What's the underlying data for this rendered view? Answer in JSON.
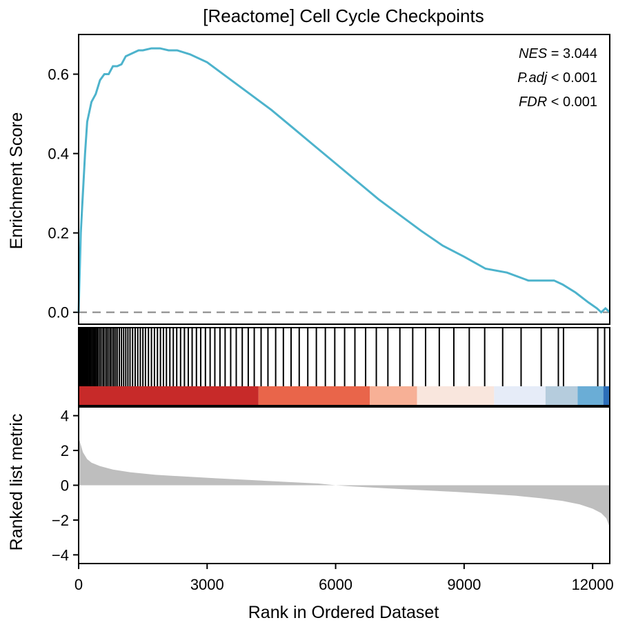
{
  "chart_data": {
    "type": "line",
    "title": "[Reactome] Cell Cycle Checkpoints",
    "annotations": [
      {
        "key": "NES",
        "op": " = ",
        "value": "3.044"
      },
      {
        "key": "P.adj",
        "op": " < ",
        "value": "0.001"
      },
      {
        "key": "FDR",
        "op": " < ",
        "value": "0.001"
      }
    ],
    "xlabel": "Rank in Ordered Dataset",
    "xlim": [
      0,
      12400
    ],
    "xticks": [
      0,
      3000,
      6000,
      9000,
      12000
    ],
    "xtick_labels": [
      "0",
      "3000",
      "6000",
      "9000",
      "12000"
    ],
    "colors": {
      "curve": "#4DB3CC",
      "zero_line": "#999999",
      "metric_fill": "#BEBEBE",
      "hits": "#000000"
    },
    "enrichment": {
      "ylabel": "Enrichment Score",
      "ylim": [
        -0.03,
        0.7
      ],
      "yticks": [
        0.0,
        0.2,
        0.4,
        0.6
      ],
      "ytick_labels": [
        "0.0",
        "0.2",
        "0.4",
        "0.6"
      ],
      "series": [
        {
          "x": [
            0,
            50,
            100,
            150,
            200,
            300,
            400,
            500,
            600,
            700,
            800,
            900,
            1000,
            1100,
            1200,
            1300,
            1400,
            1500,
            1700,
            1900,
            2100,
            2300,
            2600,
            3000,
            3500,
            4000,
            4500,
            5000,
            5500,
            6000,
            6500,
            7000,
            7500,
            8000,
            8500,
            9000,
            9500,
            10000,
            10500,
            10900,
            11100,
            11300,
            11600,
            11900,
            12100,
            12200,
            12300,
            12400
          ],
          "y": [
            0.0,
            0.2,
            0.3,
            0.4,
            0.48,
            0.53,
            0.55,
            0.585,
            0.6,
            0.6,
            0.62,
            0.62,
            0.625,
            0.645,
            0.65,
            0.655,
            0.66,
            0.66,
            0.665,
            0.665,
            0.66,
            0.66,
            0.65,
            0.63,
            0.59,
            0.55,
            0.51,
            0.465,
            0.42,
            0.375,
            0.33,
            0.285,
            0.245,
            0.205,
            0.168,
            0.14,
            0.11,
            0.1,
            0.08,
            0.08,
            0.08,
            0.07,
            0.05,
            0.025,
            0.01,
            0.0,
            0.01,
            0.0
          ]
        }
      ]
    },
    "hits": {
      "positions": [
        5,
        15,
        25,
        40,
        55,
        70,
        90,
        110,
        130,
        150,
        170,
        195,
        220,
        250,
        280,
        310,
        340,
        370,
        400,
        430,
        460,
        500,
        540,
        580,
        620,
        660,
        700,
        740,
        780,
        820,
        860,
        900,
        950,
        1000,
        1050,
        1100,
        1150,
        1200,
        1260,
        1320,
        1380,
        1440,
        1500,
        1560,
        1630,
        1700,
        1770,
        1840,
        1910,
        1980,
        2050,
        2130,
        2210,
        2290,
        2380,
        2470,
        2560,
        2650,
        2750,
        2850,
        2960,
        3070,
        3180,
        3300,
        3420,
        3550,
        3680,
        3820,
        3960,
        4100,
        4260,
        4420,
        4600,
        4780,
        4960,
        5150,
        5350,
        5550,
        5760,
        5980,
        6210,
        6450,
        6700,
        6950,
        7220,
        7500,
        7800,
        8100,
        8420,
        8760,
        9120,
        9480,
        9900,
        10330,
        10800,
        11200,
        11320,
        12120,
        12280
      ],
      "colorbar": [
        {
          "from": 0,
          "to": 4200,
          "color": "#C72A29"
        },
        {
          "from": 4200,
          "to": 6800,
          "color": "#E9654A"
        },
        {
          "from": 6800,
          "to": 7900,
          "color": "#F7B096"
        },
        {
          "from": 7900,
          "to": 9700,
          "color": "#F9E6DD"
        },
        {
          "from": 9700,
          "to": 10900,
          "color": "#E6ECF8"
        },
        {
          "from": 10900,
          "to": 11650,
          "color": "#B5CCDD"
        },
        {
          "from": 11650,
          "to": 12250,
          "color": "#6AADD6"
        },
        {
          "from": 12250,
          "to": 12400,
          "color": "#2C6EB8"
        }
      ]
    },
    "metric": {
      "ylabel": "Ranked list metric",
      "ylim": [
        -4.5,
        4.5
      ],
      "yticks": [
        -4,
        -2,
        0,
        2,
        4
      ],
      "ytick_labels": [
        "−4",
        "−2",
        "0",
        "2",
        "4"
      ],
      "x": [
        0,
        30,
        100,
        200,
        300,
        500,
        800,
        1200,
        1800,
        2500,
        3200,
        4000,
        4800,
        5600,
        6000,
        6400,
        7200,
        8000,
        8800,
        9600,
        10200,
        10800,
        11300,
        11700,
        12000,
        12200,
        12320,
        12380,
        12400
      ],
      "y": [
        2.7,
        2.5,
        1.9,
        1.5,
        1.3,
        1.1,
        0.9,
        0.75,
        0.6,
        0.5,
        0.4,
        0.3,
        0.2,
        0.1,
        0.0,
        -0.07,
        -0.18,
        -0.28,
        -0.38,
        -0.5,
        -0.6,
        -0.75,
        -0.9,
        -1.1,
        -1.35,
        -1.6,
        -1.9,
        -2.3,
        -2.6
      ]
    }
  }
}
